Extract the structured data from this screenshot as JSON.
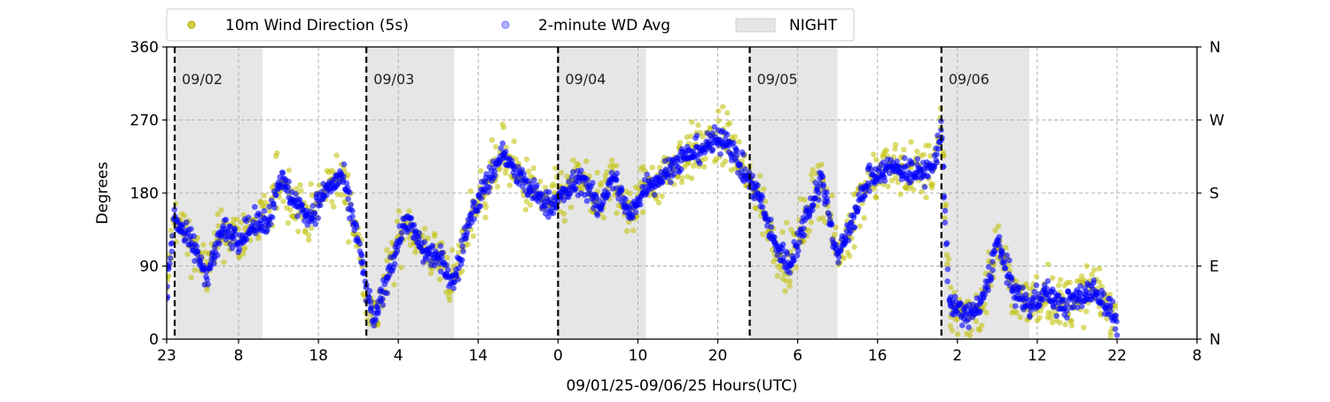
{
  "chart_data": {
    "type": "scatter",
    "xlabel": "09/01/25-09/06/25  Hours(UTC)",
    "ylabel": "Degrees",
    "ylim": [
      0,
      360
    ],
    "xlim_hours_since_0901_23utc": [
      0,
      129
    ],
    "x_ticks": [
      {
        "label": "23",
        "hour_offset": 0
      },
      {
        "label": "8",
        "hour_offset": 9
      },
      {
        "label": "18",
        "hour_offset": 19
      },
      {
        "label": "4",
        "hour_offset": 29
      },
      {
        "label": "14",
        "hour_offset": 39
      },
      {
        "label": "0",
        "hour_offset": 49
      },
      {
        "label": "10",
        "hour_offset": 59
      },
      {
        "label": "20",
        "hour_offset": 69
      },
      {
        "label": "6",
        "hour_offset": 79
      },
      {
        "label": "16",
        "hour_offset": 89
      },
      {
        "label": "2",
        "hour_offset": 99
      },
      {
        "label": "12",
        "hour_offset": 109
      },
      {
        "label": "22",
        "hour_offset": 119
      },
      {
        "label": "8",
        "hour_offset": 129
      }
    ],
    "y_ticks": [
      0,
      90,
      180,
      270,
      360
    ],
    "y_right_ticks": [
      {
        "value": 0,
        "label": "N"
      },
      {
        "value": 90,
        "label": "E"
      },
      {
        "value": 180,
        "label": "S"
      },
      {
        "value": 270,
        "label": "W"
      },
      {
        "value": 360,
        "label": "N"
      }
    ],
    "grid": true,
    "legend_placement": "top-center-outside",
    "day_markers": [
      {
        "label": "09/02",
        "hour_offset": 1
      },
      {
        "label": "09/03",
        "hour_offset": 25
      },
      {
        "label": "09/04",
        "hour_offset": 49
      },
      {
        "label": "09/05",
        "hour_offset": 73
      },
      {
        "label": "09/06",
        "hour_offset": 97
      }
    ],
    "night_periods": [
      [
        1,
        12
      ],
      [
        25,
        36
      ],
      [
        49,
        60
      ],
      [
        73,
        84
      ],
      [
        97,
        108
      ]
    ],
    "series": [
      {
        "name": "10m Wind Direction (5s)",
        "color": "#bfbf00",
        "profile": [
          [
            0,
            60
          ],
          [
            1,
            150
          ],
          [
            3,
            120
          ],
          [
            5,
            80
          ],
          [
            7,
            135
          ],
          [
            9,
            125
          ],
          [
            11,
            140
          ],
          [
            13,
            150
          ],
          [
            14,
            200
          ],
          [
            16,
            170
          ],
          [
            18,
            150
          ],
          [
            20,
            185
          ],
          [
            22,
            200
          ],
          [
            24,
            120
          ],
          [
            25,
            60
          ],
          [
            26,
            20
          ],
          [
            28,
            90
          ],
          [
            30,
            150
          ],
          [
            32,
            110
          ],
          [
            34,
            100
          ],
          [
            36,
            70
          ],
          [
            38,
            150
          ],
          [
            40,
            190
          ],
          [
            42,
            230
          ],
          [
            44,
            200
          ],
          [
            46,
            180
          ],
          [
            48,
            165
          ],
          [
            50,
            180
          ],
          [
            52,
            200
          ],
          [
            54,
            160
          ],
          [
            56,
            200
          ],
          [
            58,
            150
          ],
          [
            60,
            190
          ],
          [
            62,
            200
          ],
          [
            64,
            220
          ],
          [
            66,
            230
          ],
          [
            68,
            240
          ],
          [
            70,
            250
          ],
          [
            72,
            210
          ],
          [
            74,
            180
          ],
          [
            76,
            120
          ],
          [
            78,
            90
          ],
          [
            80,
            150
          ],
          [
            82,
            200
          ],
          [
            84,
            100
          ],
          [
            86,
            150
          ],
          [
            88,
            200
          ],
          [
            90,
            210
          ],
          [
            92,
            210
          ],
          [
            94,
            205
          ],
          [
            96,
            210
          ],
          [
            97,
            260
          ],
          [
            98,
            40
          ],
          [
            100,
            30
          ],
          [
            102,
            40
          ],
          [
            104,
            120
          ],
          [
            106,
            60
          ],
          [
            108,
            40
          ],
          [
            110,
            60
          ],
          [
            112,
            40
          ],
          [
            114,
            50
          ],
          [
            116,
            60
          ],
          [
            118,
            40
          ],
          [
            119,
            20
          ]
        ]
      },
      {
        "name": "2-minute WD Avg",
        "color": "#0000ff",
        "profile": [
          [
            0,
            60
          ],
          [
            1,
            150
          ],
          [
            3,
            120
          ],
          [
            5,
            80
          ],
          [
            7,
            135
          ],
          [
            9,
            125
          ],
          [
            11,
            140
          ],
          [
            13,
            150
          ],
          [
            14,
            200
          ],
          [
            16,
            170
          ],
          [
            18,
            150
          ],
          [
            20,
            185
          ],
          [
            22,
            200
          ],
          [
            24,
            120
          ],
          [
            25,
            60
          ],
          [
            26,
            20
          ],
          [
            28,
            90
          ],
          [
            30,
            150
          ],
          [
            32,
            110
          ],
          [
            34,
            100
          ],
          [
            36,
            70
          ],
          [
            38,
            150
          ],
          [
            40,
            190
          ],
          [
            42,
            230
          ],
          [
            44,
            200
          ],
          [
            46,
            180
          ],
          [
            48,
            165
          ],
          [
            50,
            180
          ],
          [
            52,
            200
          ],
          [
            54,
            160
          ],
          [
            56,
            200
          ],
          [
            58,
            150
          ],
          [
            60,
            190
          ],
          [
            62,
            200
          ],
          [
            64,
            220
          ],
          [
            66,
            230
          ],
          [
            68,
            240
          ],
          [
            70,
            250
          ],
          [
            72,
            210
          ],
          [
            74,
            180
          ],
          [
            76,
            120
          ],
          [
            78,
            90
          ],
          [
            80,
            150
          ],
          [
            82,
            200
          ],
          [
            84,
            100
          ],
          [
            86,
            150
          ],
          [
            88,
            200
          ],
          [
            90,
            210
          ],
          [
            92,
            210
          ],
          [
            94,
            205
          ],
          [
            96,
            210
          ],
          [
            97,
            260
          ],
          [
            98,
            40
          ],
          [
            100,
            30
          ],
          [
            102,
            40
          ],
          [
            104,
            120
          ],
          [
            106,
            60
          ],
          [
            108,
            40
          ],
          [
            110,
            60
          ],
          [
            112,
            40
          ],
          [
            114,
            50
          ],
          [
            116,
            60
          ],
          [
            118,
            40
          ],
          [
            119,
            20
          ]
        ]
      }
    ],
    "legend": [
      {
        "label": "10m Wind Direction (5s)",
        "marker": "dot",
        "color": "#bfbf00"
      },
      {
        "label": "2-minute WD Avg",
        "marker": "dot",
        "color": "#8080ff"
      },
      {
        "label": "NIGHT",
        "marker": "patch",
        "color": "#e6e6e6"
      }
    ]
  }
}
